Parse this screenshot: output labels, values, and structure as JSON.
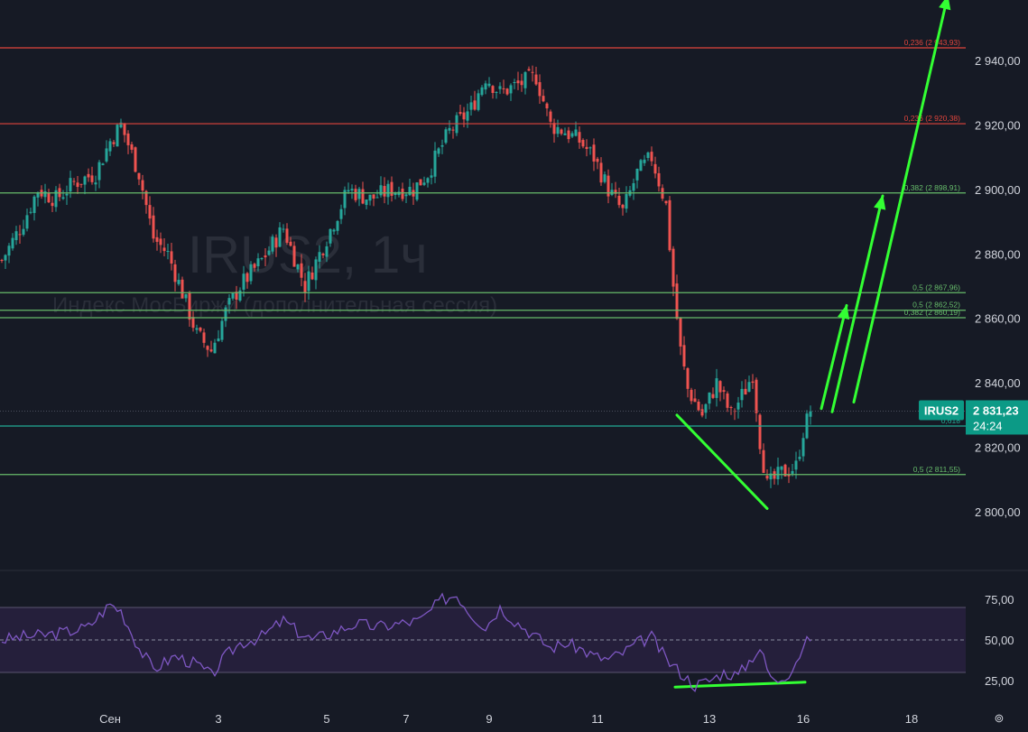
{
  "watermark": {
    "symbol": "IRUS2, 1ч",
    "description": "Индекс МосБиржи (дополнительная сессия)"
  },
  "colors": {
    "background": "#161a25",
    "candle_up": "#26a69a",
    "candle_down": "#ef5350",
    "fib_red": "#e0453c",
    "fib_green": "#66bb6a",
    "fib_teal": "#22ab94",
    "arrows": "#33ff33",
    "rsi_line": "#7e57c2",
    "rsi_band": "#251f3b",
    "axis_text": "#d1d4dc",
    "badge": "#0c9a86"
  },
  "price_badge": {
    "symbol": "IRUS2",
    "price": "2 831,23",
    "timer": "24:24"
  },
  "settings_icon": "⊚",
  "chart_data": [
    {
      "type": "candlestick",
      "ylim": [
        2784,
        2950
      ],
      "y_ticks": [
        "2 800,00",
        "2 820,00",
        "2 840,00",
        "2 860,00",
        "2 880,00",
        "2 900,00",
        "2 920,00",
        "2 940,00"
      ],
      "y_tick_values": [
        2800,
        2820,
        2840,
        2860,
        2880,
        2900,
        2920,
        2940
      ],
      "x_ticks": [
        "Сен",
        "3",
        "5",
        "7",
        "9",
        "11",
        "13",
        "16",
        "18"
      ],
      "x_tick_index": [
        30,
        60,
        90,
        112,
        135,
        165,
        196,
        222,
        252
      ],
      "x_range": [
        0,
        272
      ],
      "last_price": 2831.23,
      "close_path": [
        [
          0,
          2878
        ],
        [
          6,
          2890
        ],
        [
          10,
          2900
        ],
        [
          15,
          2897
        ],
        [
          20,
          2902
        ],
        [
          26,
          2905
        ],
        [
          30,
          2915
        ],
        [
          33,
          2920
        ],
        [
          38,
          2905
        ],
        [
          42,
          2885
        ],
        [
          46,
          2880
        ],
        [
          50,
          2868
        ],
        [
          54,
          2855
        ],
        [
          58,
          2850
        ],
        [
          62,
          2862
        ],
        [
          66,
          2870
        ],
        [
          72,
          2878
        ],
        [
          78,
          2888
        ],
        [
          84,
          2870
        ],
        [
          88,
          2880
        ],
        [
          92,
          2890
        ],
        [
          96,
          2900
        ],
        [
          102,
          2897
        ],
        [
          108,
          2900
        ],
        [
          114,
          2900
        ],
        [
          118,
          2905
        ],
        [
          124,
          2918
        ],
        [
          130,
          2925
        ],
        [
          134,
          2935
        ],
        [
          138,
          2930
        ],
        [
          142,
          2932
        ],
        [
          148,
          2935
        ],
        [
          152,
          2920
        ],
        [
          156,
          2918
        ],
        [
          160,
          2915
        ],
        [
          164,
          2910
        ],
        [
          168,
          2900
        ],
        [
          172,
          2893
        ],
        [
          176,
          2905
        ],
        [
          180,
          2910
        ],
        [
          184,
          2895
        ],
        [
          186,
          2870
        ],
        [
          188,
          2850
        ],
        [
          190,
          2838
        ],
        [
          194,
          2830
        ],
        [
          198,
          2840
        ],
        [
          202,
          2830
        ],
        [
          206,
          2838
        ],
        [
          208,
          2843
        ],
        [
          210,
          2822
        ],
        [
          212,
          2808
        ],
        [
          216,
          2812
        ],
        [
          220,
          2814
        ],
        [
          222,
          2825
        ],
        [
          224,
          2831.23
        ]
      ],
      "fib_levels": [
        {
          "label": "0,236 (2 943,93)",
          "value": 2943.93,
          "color": "#e0453c"
        },
        {
          "label": "0,236 (2 920,38)",
          "value": 2920.38,
          "color": "#e0453c"
        },
        {
          "label": "0,382 (2 898,91)",
          "value": 2898.91,
          "color": "#66bb6a"
        },
        {
          "label": "0,5 (2 867,96)",
          "value": 2867.96,
          "color": "#66bb6a"
        },
        {
          "label": "0,5 (2 862,52)",
          "value": 2862.52,
          "color": "#66bb6a"
        },
        {
          "label": "0,382 (2 860,19)",
          "value": 2860.19,
          "color": "#66bb6a"
        },
        {
          "label": "0,618",
          "value": 2826.6,
          "color": "#22ab94"
        },
        {
          "label": "0,5 (2 811,55)",
          "value": 2811.55,
          "color": "#66bb6a"
        }
      ]
    },
    {
      "type": "line",
      "name": "RSI",
      "ylim": [
        15,
        85
      ],
      "band": [
        30,
        70
      ],
      "midline": 50,
      "y_ticks": [
        "25,00",
        "50,00",
        "75,00"
      ],
      "y_tick_values": [
        25,
        50,
        75
      ],
      "path": [
        [
          0,
          50
        ],
        [
          6,
          52
        ],
        [
          12,
          53
        ],
        [
          18,
          55
        ],
        [
          24,
          58
        ],
        [
          30,
          72
        ],
        [
          33,
          68
        ],
        [
          38,
          45
        ],
        [
          42,
          32
        ],
        [
          48,
          40
        ],
        [
          54,
          35
        ],
        [
          58,
          28
        ],
        [
          62,
          40
        ],
        [
          66,
          48
        ],
        [
          72,
          52
        ],
        [
          78,
          62
        ],
        [
          82,
          55
        ],
        [
          86,
          50
        ],
        [
          92,
          55
        ],
        [
          98,
          60
        ],
        [
          104,
          58
        ],
        [
          110,
          60
        ],
        [
          116,
          62
        ],
        [
          122,
          75
        ],
        [
          126,
          78
        ],
        [
          130,
          66
        ],
        [
          134,
          58
        ],
        [
          138,
          70
        ],
        [
          142,
          62
        ],
        [
          148,
          52
        ],
        [
          152,
          45
        ],
        [
          156,
          48
        ],
        [
          160,
          45
        ],
        [
          164,
          40
        ],
        [
          168,
          38
        ],
        [
          172,
          42
        ],
        [
          176,
          48
        ],
        [
          180,
          52
        ],
        [
          184,
          38
        ],
        [
          188,
          30
        ],
        [
          192,
          22
        ],
        [
          196,
          25
        ],
        [
          200,
          30
        ],
        [
          204,
          28
        ],
        [
          208,
          40
        ],
        [
          210,
          45
        ],
        [
          212,
          32
        ],
        [
          214,
          24
        ],
        [
          218,
          30
        ],
        [
          222,
          45
        ],
        [
          224,
          52
        ]
      ]
    }
  ]
}
